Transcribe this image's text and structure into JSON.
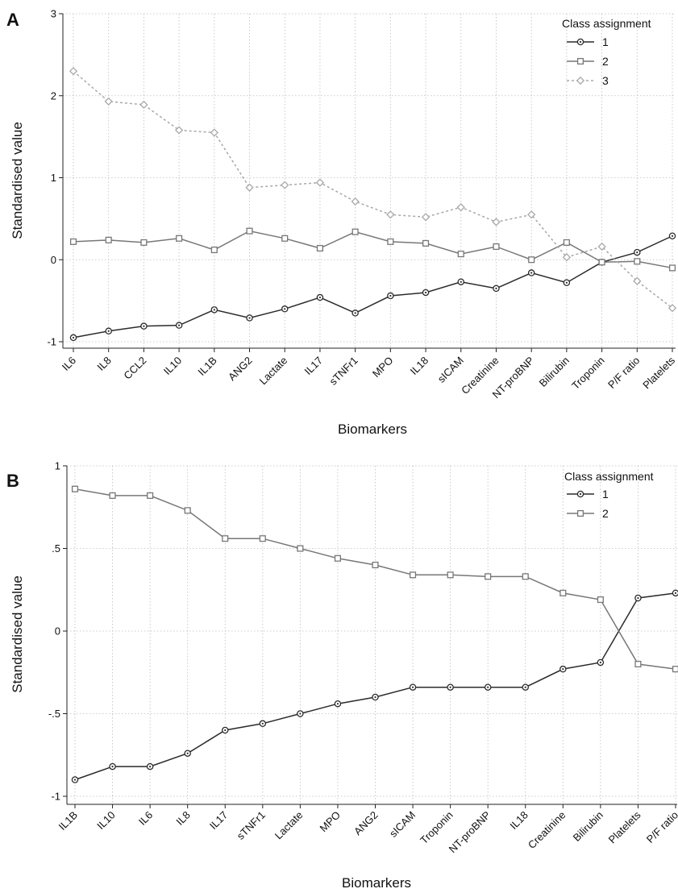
{
  "chart_data": [
    {
      "panel": "A",
      "type": "line",
      "xlabel": "Biomarkers",
      "ylabel": "Standardised value",
      "ylim": [
        -1,
        3
      ],
      "yticks": [
        -1,
        0,
        1,
        2,
        3
      ],
      "ytick_labels": [
        "-1",
        "0",
        "1",
        "2",
        "3"
      ],
      "grid": true,
      "legend_title": "Class assignment",
      "legend_position": "top-right",
      "categories": [
        "IL6",
        "IL8",
        "CCL2",
        "IL10",
        "IL1B",
        "ANG2",
        "Lactate",
        "IL17",
        "sTNFr1",
        "MPO",
        "IL18",
        "sICAM",
        "Creatinine",
        "NT-proBNP",
        "Bilirubin",
        "Troponin",
        "P/F ratio",
        "Platelets"
      ],
      "series": [
        {
          "name": "1",
          "color": "#2b2b2b",
          "marker": "circle",
          "dash": "solid",
          "values": [
            -0.95,
            -0.87,
            -0.81,
            -0.8,
            -0.61,
            -0.71,
            -0.6,
            -0.46,
            -0.65,
            -0.44,
            -0.4,
            -0.27,
            -0.35,
            -0.16,
            -0.28,
            -0.03,
            0.09,
            0.29
          ]
        },
        {
          "name": "2",
          "color": "#777777",
          "marker": "square",
          "dash": "solid",
          "values": [
            0.22,
            0.24,
            0.21,
            0.26,
            0.12,
            0.35,
            0.26,
            0.14,
            0.34,
            0.22,
            0.2,
            0.07,
            0.16,
            0.0,
            0.21,
            -0.03,
            -0.02,
            -0.1
          ]
        },
        {
          "name": "3",
          "color": "#a8a8a8",
          "marker": "diamond",
          "dash": "dashed",
          "values": [
            2.3,
            1.93,
            1.89,
            1.58,
            1.55,
            0.88,
            0.91,
            0.94,
            0.71,
            0.55,
            0.52,
            0.64,
            0.46,
            0.55,
            0.03,
            0.16,
            -0.26,
            -0.59
          ]
        }
      ]
    },
    {
      "panel": "B",
      "type": "line",
      "xlabel": "Biomarkers",
      "ylabel": "Standardised value",
      "ylim": [
        -1,
        1
      ],
      "yticks": [
        -1,
        -0.5,
        0,
        0.5,
        1
      ],
      "ytick_labels": [
        "-1",
        "-.5",
        "0",
        ".5",
        "1"
      ],
      "grid": true,
      "legend_title": "Class assignment",
      "legend_position": "top-right",
      "categories": [
        "IL1B",
        "IL10",
        "IL6",
        "IL8",
        "IL17",
        "sTNFr1",
        "Lactate",
        "MPO",
        "ANG2",
        "sICAM",
        "Troponin",
        "NT-proBNP",
        "IL18",
        "Creatinine",
        "Bilirubin",
        "Platelets",
        "P/F ratio"
      ],
      "series": [
        {
          "name": "1",
          "color": "#2b2b2b",
          "marker": "circle",
          "dash": "solid",
          "values": [
            -0.9,
            -0.82,
            -0.82,
            -0.74,
            -0.6,
            -0.56,
            -0.5,
            -0.44,
            -0.4,
            -0.34,
            -0.34,
            -0.34,
            -0.34,
            -0.23,
            -0.19,
            0.2,
            0.23
          ]
        },
        {
          "name": "2",
          "color": "#777777",
          "marker": "square",
          "dash": "solid",
          "values": [
            0.86,
            0.82,
            0.82,
            0.73,
            0.56,
            0.56,
            0.5,
            0.44,
            0.4,
            0.34,
            0.34,
            0.33,
            0.33,
            0.23,
            0.19,
            -0.2,
            -0.23
          ]
        }
      ]
    }
  ]
}
